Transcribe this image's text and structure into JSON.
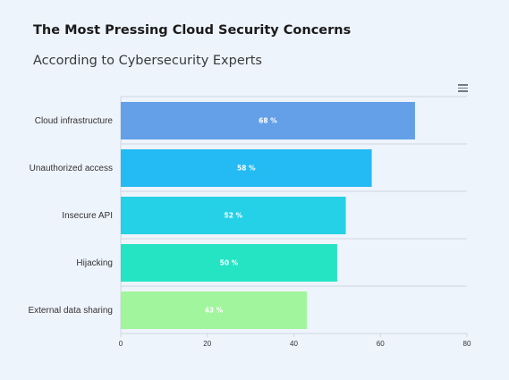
{
  "header": {
    "title": "The Most Pressing Cloud Security Concerns",
    "subtitle": "According to Cybersecurity Experts"
  },
  "toolbar": {
    "menu_icon": "hamburger-menu-icon"
  },
  "chart_data": {
    "type": "bar",
    "orientation": "horizontal",
    "title": "The Most Pressing Cloud Security Concerns",
    "subtitle": "According to Cybersecurity Experts",
    "categories": [
      "Cloud infrastructure",
      "Unauthorized access",
      "Insecure API",
      "Hijacking",
      "External data sharing"
    ],
    "values": [
      68,
      58,
      52,
      50,
      43
    ],
    "data_labels": [
      "68 %",
      "58 %",
      "52 %",
      "50 %",
      "43 %"
    ],
    "colors": [
      "#64a0e8",
      "#24bbf4",
      "#25d1e6",
      "#24e4c4",
      "#a1f59d"
    ],
    "xlim": [
      0,
      80
    ],
    "x_ticks": [
      0,
      20,
      40,
      60,
      80
    ],
    "xlabel": "",
    "ylabel": "",
    "grid": "horizontal separators",
    "legend": "none"
  }
}
